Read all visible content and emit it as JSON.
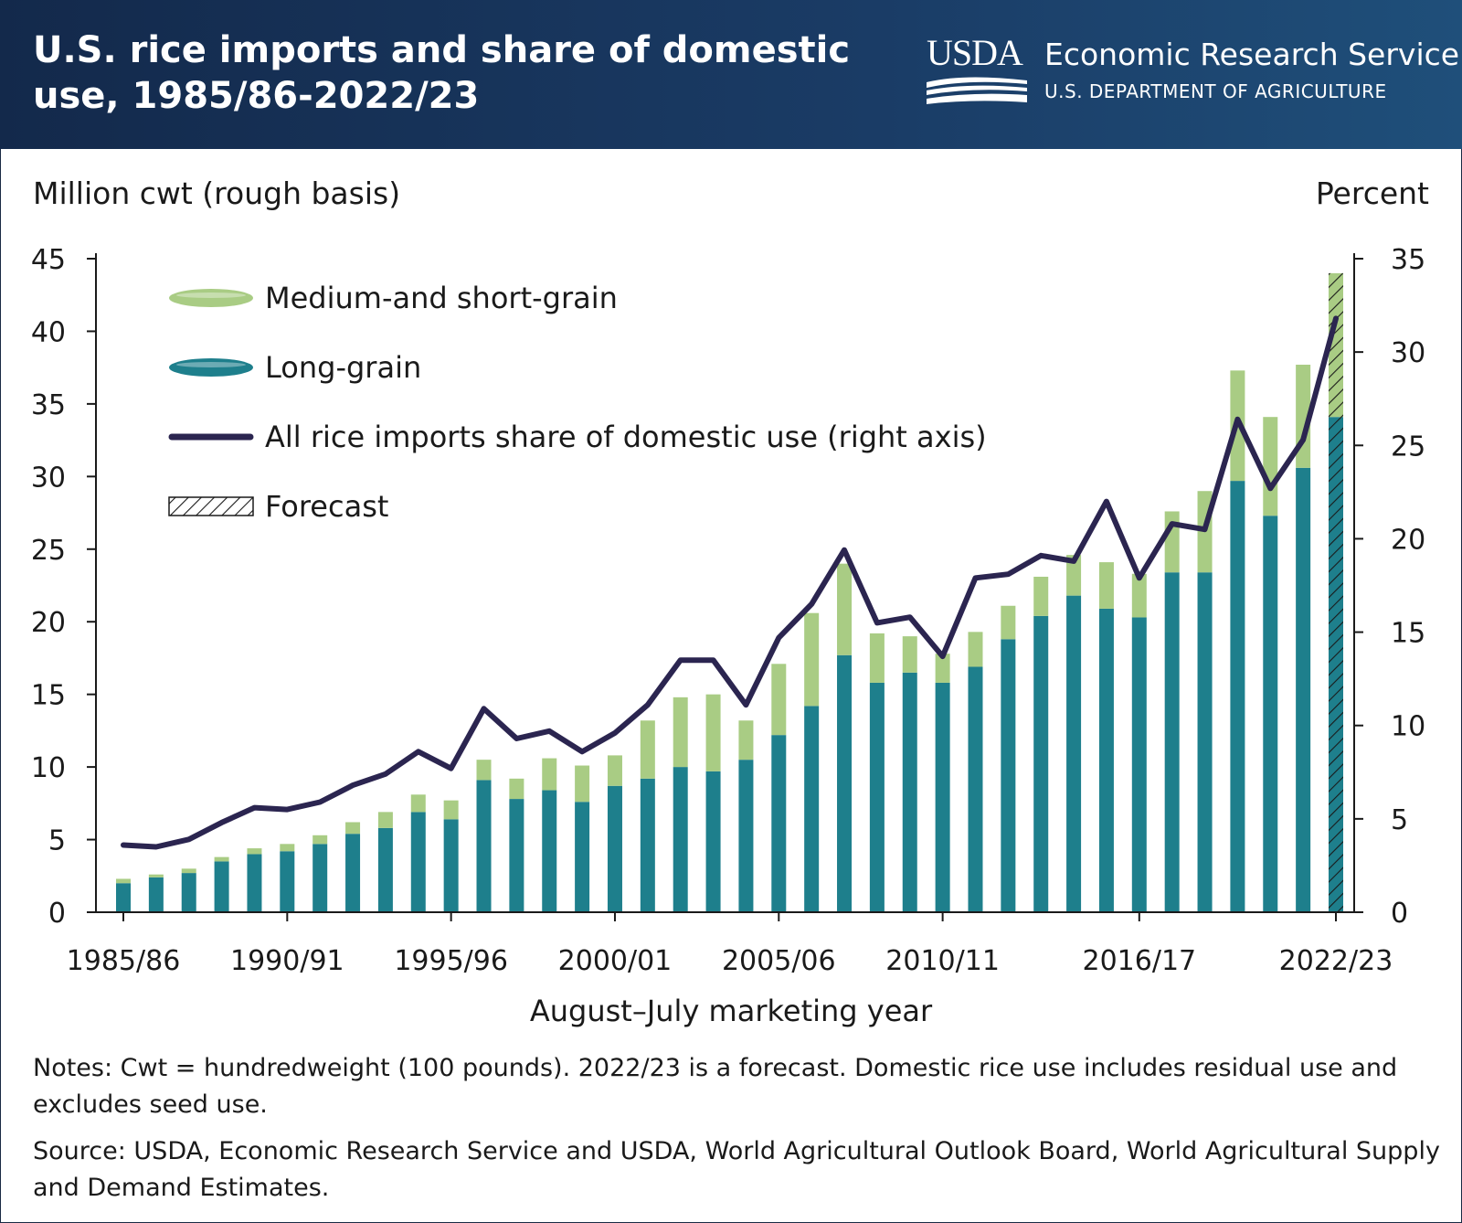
{
  "header": {
    "title": "U.S. rice imports and share of domestic use, 1985/86-2022/23",
    "logo_text": "USDA",
    "agency": "Economic Research Service",
    "department": "U.S. DEPARTMENT OF AGRICULTURE"
  },
  "footer": {
    "notes": "Notes: Cwt = hundredweight (100 pounds). 2022/23 is a forecast. Domestic rice use includes residual use and excludes seed use.",
    "source": "Source: USDA, Economic Research Service and USDA, World Agricultural Outlook Board, World Agricultural Supply and Demand Estimates."
  },
  "colors": {
    "medium_short_grain": "#a9cc84",
    "long_grain": "#1e7f8c",
    "share_line": "#2b2550",
    "axis": "#1a1a1a"
  },
  "chart_data": {
    "type": "bar",
    "stacked": true,
    "xlabel": "August–July marketing year",
    "ylabel": "Million cwt (rough basis)",
    "y2label": "Percent",
    "ylim": [
      0,
      45
    ],
    "y2lim": [
      0,
      35
    ],
    "yticks": [
      0,
      5,
      10,
      15,
      20,
      25,
      30,
      35,
      40,
      45
    ],
    "y2ticks": [
      0,
      5,
      10,
      15,
      20,
      25,
      30,
      35
    ],
    "tick_labels": [
      "1985/86",
      "1990/91",
      "1995/96",
      "2000/01",
      "2005/06",
      "2010/11",
      "2016/17",
      "2022/23"
    ],
    "tick_label_indices": [
      0,
      5,
      10,
      15,
      20,
      25,
      31,
      37
    ],
    "categories": [
      "1985/86",
      "1986/87",
      "1987/88",
      "1988/89",
      "1989/90",
      "1990/91",
      "1991/92",
      "1992/93",
      "1993/94",
      "1994/95",
      "1995/96",
      "1996/97",
      "1997/98",
      "1998/99",
      "1999/00",
      "2000/01",
      "2001/02",
      "2002/03",
      "2003/04",
      "2004/05",
      "2005/06",
      "2006/07",
      "2007/08",
      "2008/09",
      "2009/10",
      "2010/11",
      "2011/12",
      "2012/13",
      "2013/14",
      "2014/15",
      "2015/16",
      "2016/17",
      "2017/18",
      "2018/19",
      "2019/20",
      "2020/21",
      "2021/22",
      "2022/23"
    ],
    "series": [
      {
        "name": "Long-grain",
        "kind": "bar",
        "values": [
          2.0,
          2.4,
          2.7,
          3.5,
          4.0,
          4.2,
          4.7,
          5.4,
          5.8,
          6.9,
          6.4,
          9.1,
          7.8,
          8.4,
          7.6,
          8.7,
          9.2,
          10.0,
          9.7,
          10.5,
          12.2,
          14.2,
          17.7,
          15.8,
          16.5,
          15.8,
          16.9,
          18.8,
          20.4,
          21.8,
          20.9,
          20.3,
          23.4,
          23.4,
          29.7,
          27.3,
          30.6,
          34.1
        ]
      },
      {
        "name": "Medium-and short-grain",
        "kind": "bar",
        "values": [
          0.3,
          0.2,
          0.3,
          0.3,
          0.4,
          0.5,
          0.6,
          0.8,
          1.1,
          1.2,
          1.3,
          1.4,
          1.4,
          2.2,
          2.5,
          2.1,
          4.0,
          4.8,
          5.3,
          2.7,
          4.9,
          6.4,
          6.3,
          3.4,
          2.5,
          2.0,
          2.4,
          2.3,
          2.7,
          2.8,
          3.2,
          3.0,
          4.2,
          5.6,
          7.6,
          6.8,
          7.1,
          9.9
        ]
      },
      {
        "name": "All rice imports share of domestic use (right axis)",
        "kind": "line",
        "axis": "right",
        "values": [
          3.6,
          3.5,
          3.9,
          4.8,
          5.6,
          5.5,
          5.9,
          6.8,
          7.4,
          8.6,
          7.7,
          10.9,
          9.3,
          9.7,
          8.6,
          9.6,
          11.1,
          13.5,
          13.5,
          11.1,
          14.7,
          16.5,
          19.4,
          15.5,
          15.8,
          13.7,
          17.9,
          18.1,
          19.1,
          18.8,
          22.0,
          17.9,
          20.8,
          20.5,
          26.4,
          22.7,
          25.3,
          31.8
        ]
      }
    ],
    "forecast_indices": [
      37
    ],
    "legend": {
      "placement": "top-left",
      "entries": [
        "Medium-and short-grain",
        "Long-grain",
        "All rice imports share of domestic use (right axis)",
        "Forecast"
      ]
    }
  }
}
